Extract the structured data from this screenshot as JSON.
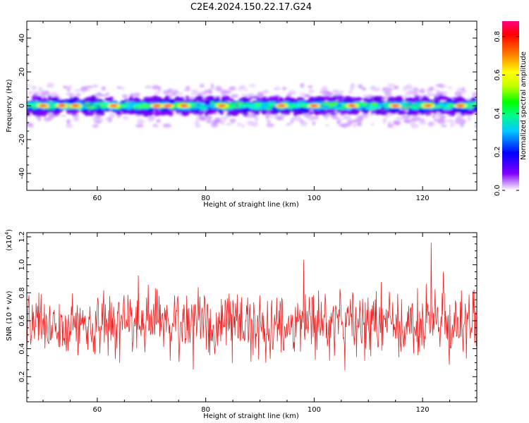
{
  "chart_data": [
    {
      "type": "heatmap",
      "title": "C2E4.2024.150.22.17.G24",
      "xlabel": "Height of straight line (km)",
      "ylabel": "Frequency (Hz)",
      "xlim": [
        47,
        130
      ],
      "ylim": [
        -50,
        50
      ],
      "xticks": [
        60,
        80,
        100,
        120
      ],
      "yticks": [
        40,
        20,
        0,
        -20,
        -40
      ],
      "band": {
        "center_hz": 0,
        "halfwidth_hz": 4,
        "outer_halfwidth_hz": 11
      },
      "hotspots_km": [
        50,
        53.5,
        56,
        63,
        71,
        73,
        76,
        83,
        94,
        100,
        107,
        115,
        121,
        127
      ],
      "colorbar": {
        "label": "Normalized spectral amplitude",
        "range": [
          0,
          0.88
        ],
        "ticks": [
          "0.0",
          "0.2",
          "0.4",
          "0.6",
          "0.8"
        ],
        "colors": [
          "#ffffff",
          "#8000ff",
          "#0000ff",
          "#00c8ff",
          "#00ff80",
          "#00ff00",
          "#c8ff00",
          "#ffff00",
          "#ff8000",
          "#ff0000",
          "#ff0080"
        ]
      }
    },
    {
      "type": "line",
      "xlabel": "Height of straight line (km)",
      "ylabel": "SNR (10 * v/v)",
      "scale_note": "(x10",
      "scale_exp": "4",
      "scale_close": ")",
      "xlim": [
        47,
        130
      ],
      "ylim": [
        0.02,
        1.23
      ],
      "xticks": [
        60,
        80,
        100,
        120
      ],
      "yticks": [
        "0.2",
        "0.4",
        "0.6",
        "0.8",
        "1.0",
        "1.2"
      ],
      "line_color": "#ee2222",
      "series": [
        {
          "x_start": 47,
          "x_end": 130,
          "points": 820,
          "mean": 0.58,
          "spread": 0.16,
          "seed": 7
        }
      ]
    }
  ]
}
